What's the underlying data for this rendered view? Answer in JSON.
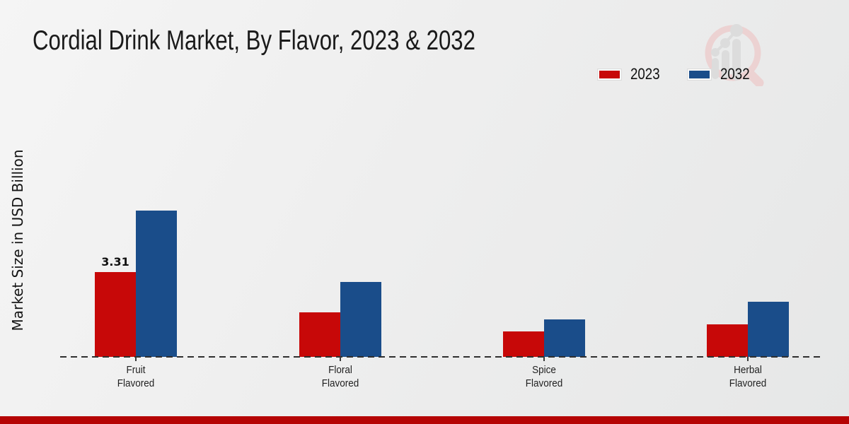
{
  "title": "Cordial Drink Market, By Flavor, 2023 & 2032",
  "ylabel": "Market Size in USD Billion",
  "legend": {
    "items": [
      {
        "label": "2023",
        "color": "#c70808"
      },
      {
        "label": "2032",
        "color": "#1a4d8a"
      }
    ]
  },
  "chart_data": {
    "type": "bar",
    "title": "Cordial Drink Market, By Flavor, 2023 & 2032",
    "ylabel": "Market Size in USD Billion",
    "categories": [
      "Fruit Flavored",
      "Floral Flavored",
      "Spice Flavored",
      "Herbal Flavored"
    ],
    "series": [
      {
        "name": "2023",
        "color": "#c70808",
        "values": [
          3.31,
          1.75,
          0.98,
          1.28
        ]
      },
      {
        "name": "2032",
        "color": "#1a4d8a",
        "values": [
          5.71,
          2.92,
          1.46,
          2.15
        ]
      }
    ],
    "data_labels": [
      {
        "series_index": 0,
        "category_index": 0,
        "text": "3.31"
      }
    ],
    "ylim": [
      0,
      6.2
    ],
    "grid": false,
    "axis_style": "dashed-baseline",
    "legend_position": "top-right"
  },
  "footer": {
    "band_color": "#b50404"
  },
  "watermark_icon": "magnifier-bar-chart-logo"
}
